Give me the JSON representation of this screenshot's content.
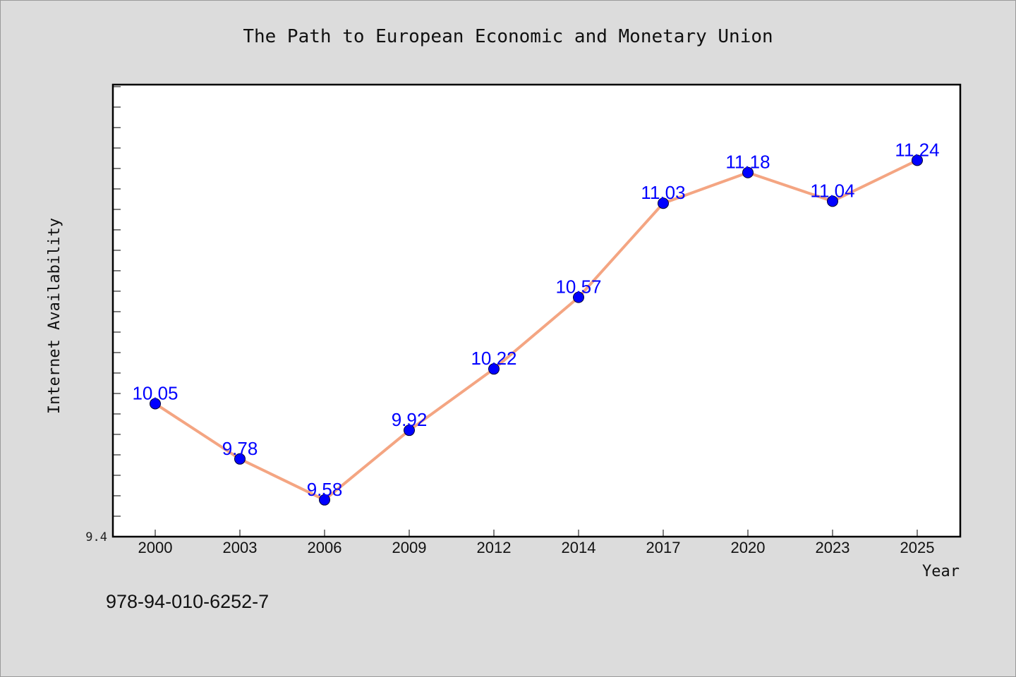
{
  "chart_data": {
    "type": "line",
    "title": "The Path to European Economic and Monetary Union",
    "xlabel": "Year",
    "ylabel": "Internet Availability",
    "categories": [
      "2000",
      "2003",
      "2006",
      "2009",
      "2012",
      "2014",
      "2017",
      "2020",
      "2023",
      "2025"
    ],
    "series": [
      {
        "values": [
          10.05,
          9.78,
          9.58,
          9.92,
          10.22,
          10.57,
          11.03,
          11.18,
          11.04,
          11.24
        ],
        "data_labels": [
          "10.05",
          "9.78",
          "9.58",
          "9.92",
          "10.22",
          "10.57",
          "11.03",
          "11.18",
          "11.04",
          "11.24"
        ]
      }
    ],
    "ylim": [
      9.4,
      11.61
    ],
    "ytick_label": "9.4",
    "grid": false,
    "line_color": "#f4a582",
    "marker_color": "#0000ff",
    "label_color": "#0000ff"
  },
  "footer": {
    "isbn": "978-94-010-6252-7"
  }
}
